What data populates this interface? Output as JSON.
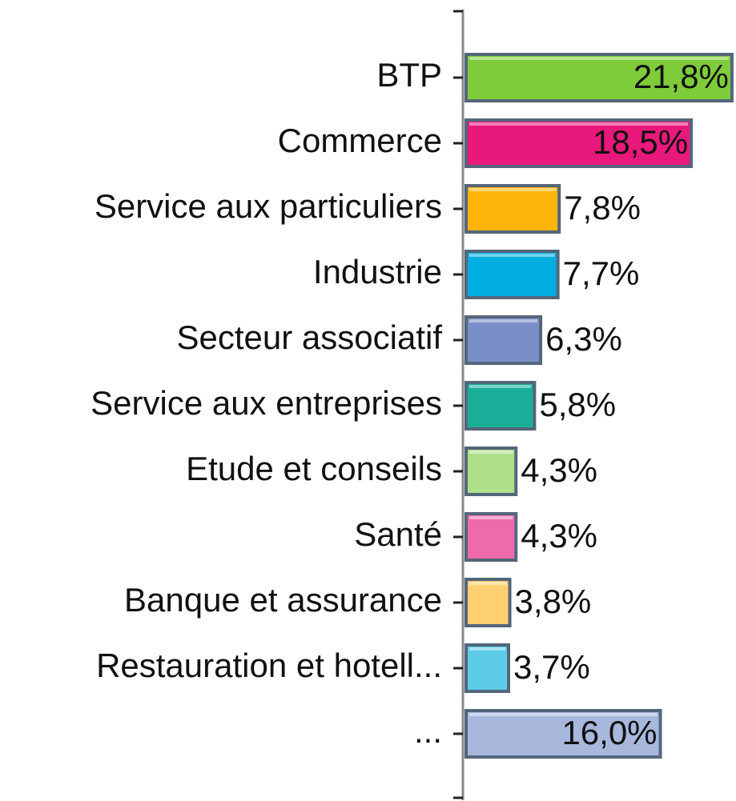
{
  "chart_data": {
    "type": "barh",
    "categories": [
      "BTP",
      "Commerce",
      "Service aux particuliers",
      "Industrie",
      "Secteur associatif",
      "Service aux entreprises",
      "Etude et conseils",
      "Santé",
      "Banque et assurance",
      "Restauration et hotell...",
      "..."
    ],
    "values": [
      21.8,
      18.5,
      7.8,
      7.7,
      6.3,
      5.8,
      4.3,
      4.3,
      3.8,
      3.7,
      16.0
    ],
    "value_labels": [
      "21,8%",
      "18,5%",
      "7,8%",
      "7,7%",
      "6,3%",
      "5,8%",
      "4,3%",
      "4,3%",
      "3,8%",
      "3,7%",
      "16,0%"
    ],
    "colors": [
      "#7fcc3a",
      "#e8197a",
      "#ffb40a",
      "#00aee0",
      "#7a8ec8",
      "#1aae98",
      "#aee08a",
      "#ee6aaa",
      "#ffd070",
      "#5ccce8",
      "#a8b8dc"
    ],
    "xlim": [
      0,
      22
    ]
  }
}
